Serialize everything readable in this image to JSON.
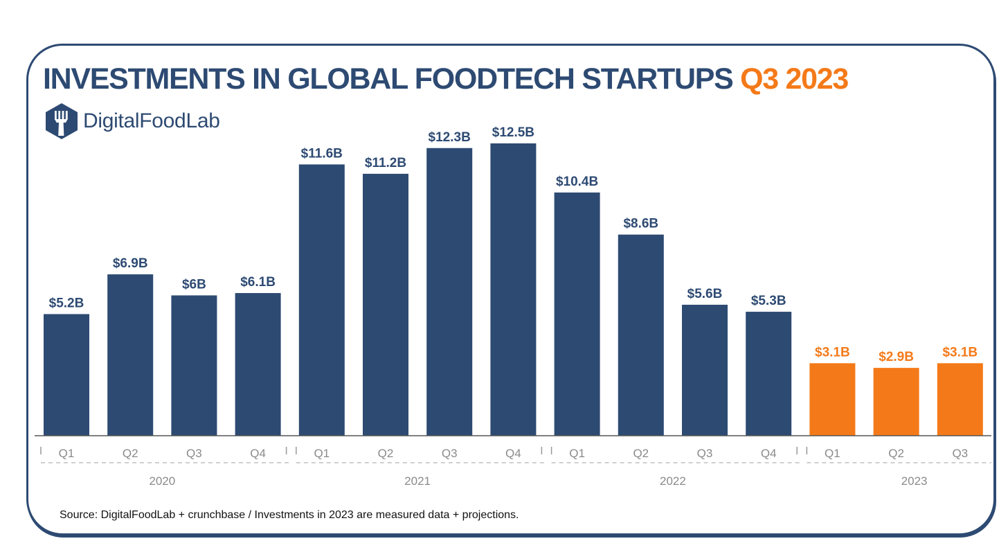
{
  "title": {
    "main": "INVESTMENTS IN GLOBAL FOODTECH STARTUPS",
    "highlight": "Q3 2023"
  },
  "brand": {
    "name": "DigitalFoodLab",
    "icon": "fork-hexagon-icon"
  },
  "source_note": "Source: DigitalFoodLab + crunchbase / Investments in 2023 are measured data + projections.",
  "colors": {
    "primary": "#2d4a72",
    "accent": "#f47a19",
    "axis": "#555555",
    "tick_text": "#8a8a8a"
  },
  "chart_data": {
    "type": "bar",
    "title": "INVESTMENTS IN GLOBAL FOODTECH STARTUPS Q3 2023",
    "categories": [
      "Q1",
      "Q2",
      "Q3",
      "Q4",
      "Q1",
      "Q2",
      "Q3",
      "Q4",
      "Q1",
      "Q2",
      "Q3",
      "Q4",
      "Q1",
      "Q2",
      "Q3"
    ],
    "groups": [
      {
        "label": "2020",
        "count": 4
      },
      {
        "label": "2021",
        "count": 4
      },
      {
        "label": "2022",
        "count": 4
      },
      {
        "label": "2023",
        "count": 3
      }
    ],
    "values": [
      5.2,
      6.9,
      6.0,
      6.1,
      11.6,
      11.2,
      12.3,
      12.5,
      10.4,
      8.6,
      5.6,
      5.3,
      3.1,
      2.9,
      3.1
    ],
    "value_labels": [
      "$5.2B",
      "$6.9B",
      "$6B",
      "$6.1B",
      "$11.6B",
      "$11.2B",
      "$12.3B",
      "$12.5B",
      "$10.4B",
      "$8.6B",
      "$5.6B",
      "$5.3B",
      "$3.1B",
      "$2.9B",
      "$3.1B"
    ],
    "highlight_group": "2023",
    "ylim": [
      0,
      12.5
    ],
    "xlabel": "",
    "ylabel": "",
    "grid": false,
    "legend": "none"
  }
}
